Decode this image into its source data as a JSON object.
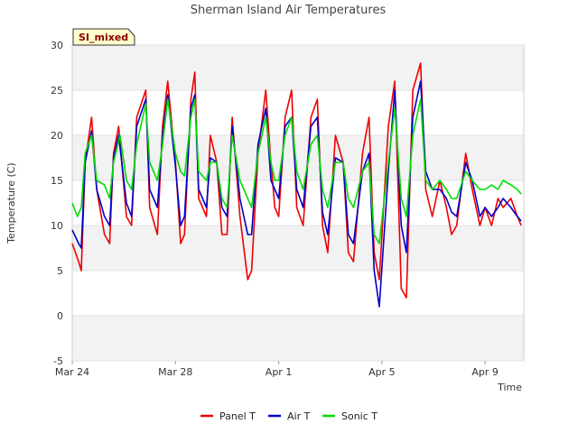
{
  "chart_data": {
    "type": "line",
    "title": "Sherman Island Air Temperatures",
    "xlabel": "Time",
    "ylabel": "Temperature (C)",
    "badge": "SI_mixed",
    "ylim": [
      -5,
      30
    ],
    "yticks": [
      -5,
      0,
      5,
      10,
      15,
      20,
      25,
      30
    ],
    "xlim": [
      0,
      17.5
    ],
    "xticks": [
      {
        "value": 0,
        "label": "Mar 24"
      },
      {
        "value": 4,
        "label": "Mar 28"
      },
      {
        "value": 8,
        "label": "Apr 1"
      },
      {
        "value": 12,
        "label": "Apr 5"
      },
      {
        "value": 16,
        "label": "Apr 9"
      }
    ],
    "grid": "horizontal bands",
    "legend_position": "bottom",
    "x_units": "days after Mar 24",
    "series": [
      {
        "name": "Panel T",
        "color": "#ee0000",
        "x": [
          0.0,
          0.25,
          0.35,
          0.5,
          0.75,
          0.95,
          1.25,
          1.45,
          1.6,
          1.8,
          2.1,
          2.3,
          2.5,
          2.85,
          3.0,
          3.3,
          3.5,
          3.7,
          4.0,
          4.2,
          4.35,
          4.6,
          4.75,
          4.9,
          5.2,
          5.35,
          5.6,
          5.8,
          6.0,
          6.2,
          6.5,
          6.8,
          6.95,
          7.2,
          7.5,
          7.7,
          7.85,
          8.0,
          8.25,
          8.5,
          8.7,
          8.95,
          9.25,
          9.5,
          9.7,
          9.9,
          10.2,
          10.5,
          10.7,
          10.9,
          11.25,
          11.5,
          11.7,
          11.9,
          12.25,
          12.5,
          12.75,
          12.95,
          13.2,
          13.5,
          13.7,
          13.95,
          14.25,
          14.5,
          14.7,
          14.9,
          15.25,
          15.5,
          15.8,
          16.0,
          16.25,
          16.5,
          16.7,
          17.0,
          17.25,
          17.4
        ],
        "y": [
          8,
          6,
          5,
          17,
          22,
          14,
          9,
          8,
          18,
          21,
          11,
          10,
          22,
          25,
          12,
          9,
          21,
          26,
          17,
          8,
          9,
          24,
          27,
          13,
          11,
          20,
          17,
          9,
          9,
          22,
          11,
          4,
          5,
          18,
          25,
          17,
          12,
          11,
          22,
          25,
          12,
          10,
          22,
          24,
          10,
          7,
          20,
          17,
          7,
          6,
          18,
          22,
          7,
          4,
          21,
          26,
          3,
          2,
          25,
          28,
          14,
          11,
          15,
          12,
          9,
          10,
          18,
          14,
          10,
          12,
          10,
          13,
          12,
          13,
          11,
          10
        ]
      },
      {
        "name": "Air T",
        "color": "#0000cc",
        "x": [
          0.0,
          0.25,
          0.35,
          0.5,
          0.75,
          0.95,
          1.25,
          1.45,
          1.6,
          1.8,
          2.1,
          2.3,
          2.5,
          2.85,
          3.0,
          3.3,
          3.5,
          3.7,
          4.0,
          4.2,
          4.35,
          4.6,
          4.75,
          4.9,
          5.2,
          5.35,
          5.6,
          5.8,
          6.0,
          6.2,
          6.5,
          6.8,
          6.95,
          7.2,
          7.5,
          7.7,
          7.85,
          8.0,
          8.25,
          8.5,
          8.7,
          8.95,
          9.25,
          9.5,
          9.7,
          9.9,
          10.2,
          10.5,
          10.7,
          10.9,
          11.25,
          11.5,
          11.7,
          11.9,
          12.25,
          12.5,
          12.75,
          12.95,
          13.2,
          13.5,
          13.7,
          13.95,
          14.25,
          14.5,
          14.7,
          14.9,
          15.25,
          15.5,
          15.8,
          16.0,
          16.25,
          16.5,
          16.7,
          17.0,
          17.25,
          17.4
        ],
        "y": [
          9.5,
          8,
          7.5,
          17,
          20.5,
          14,
          11,
          10,
          17.5,
          20,
          12.5,
          11,
          21,
          24,
          14,
          12,
          20,
          24.5,
          16.5,
          10,
          11,
          23,
          24.5,
          14,
          12,
          17.5,
          17,
          12,
          11,
          21,
          13,
          9,
          9,
          19,
          23,
          15,
          14,
          13,
          21,
          22,
          14,
          12,
          21,
          22,
          11.5,
          9,
          17.5,
          17,
          9,
          8,
          16,
          18,
          5,
          1,
          16,
          25,
          10,
          7,
          22,
          26,
          16,
          14,
          14,
          13,
          11.5,
          11,
          17,
          15,
          11,
          12,
          11,
          12,
          13,
          12,
          11,
          10.5
        ]
      },
      {
        "name": "Sonic T",
        "color": "#00dd00",
        "x": [
          0.0,
          0.2,
          0.35,
          0.5,
          0.75,
          0.95,
          1.25,
          1.45,
          1.6,
          1.85,
          2.1,
          2.3,
          2.5,
          2.85,
          3.0,
          3.3,
          3.5,
          3.7,
          4.0,
          4.2,
          4.35,
          4.6,
          4.75,
          4.9,
          5.2,
          5.35,
          5.6,
          5.8,
          6.0,
          6.2,
          6.5,
          6.8,
          6.95,
          7.2,
          7.5,
          7.7,
          7.85,
          8.0,
          8.25,
          8.5,
          8.7,
          8.95,
          9.25,
          9.5,
          9.7,
          9.9,
          10.2,
          10.5,
          10.7,
          10.9,
          11.25,
          11.5,
          11.7,
          11.9,
          12.25,
          12.5,
          12.75,
          12.95,
          13.2,
          13.5,
          13.7,
          13.95,
          14.25,
          14.5,
          14.7,
          14.9,
          15.25,
          15.5,
          15.8,
          16.0,
          16.25,
          16.5,
          16.7,
          17.0,
          17.25,
          17.4
        ],
        "y": [
          12.5,
          11,
          12,
          18,
          20,
          15,
          14.5,
          13,
          17,
          20,
          15,
          14,
          19,
          23.5,
          17,
          15,
          19,
          24,
          18,
          16,
          15.5,
          22,
          24,
          16,
          15,
          17,
          17,
          13,
          12,
          20,
          15,
          13,
          12,
          18,
          22,
          17,
          15,
          15,
          20,
          22,
          16,
          14,
          19,
          20,
          14,
          12,
          17,
          17,
          13,
          12,
          16,
          17,
          9,
          8,
          17,
          23,
          13,
          11,
          20,
          24,
          15,
          14,
          15,
          14,
          13,
          13,
          16,
          15,
          14,
          14,
          14.5,
          14,
          15,
          14.5,
          14,
          13.5
        ]
      }
    ]
  }
}
